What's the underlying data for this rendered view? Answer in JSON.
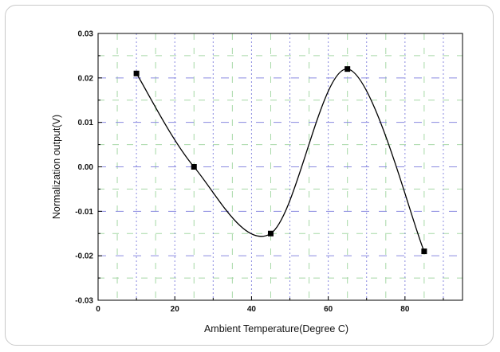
{
  "chart_data": {
    "type": "line",
    "title": "",
    "xlabel": "Ambient Temperature(Degree C)",
    "ylabel": "Normalization output(V)",
    "xlim": [
      0,
      95
    ],
    "ylim": [
      -0.03,
      0.03
    ],
    "x_ticks": [
      "0",
      "20",
      "40",
      "60",
      "80"
    ],
    "y_ticks": [
      "0.03",
      "0.02",
      "0.01",
      "0.00",
      "-0.01",
      "-0.02",
      "-0.03"
    ],
    "grid": true,
    "legend": "none",
    "series": [
      {
        "points": [
          {
            "x": 10,
            "y": 0.021
          },
          {
            "x": 25,
            "y": 0.0
          },
          {
            "x": 45,
            "y": -0.015
          },
          {
            "x": 65,
            "y": 0.022
          },
          {
            "x": 85,
            "y": -0.019
          }
        ],
        "smooth": true,
        "color": "#000000"
      }
    ],
    "colors": {
      "grid_major": "#8a8ae0",
      "grid_minor": "#a6d8a6",
      "line": "#000000",
      "marker": "#000000"
    }
  }
}
